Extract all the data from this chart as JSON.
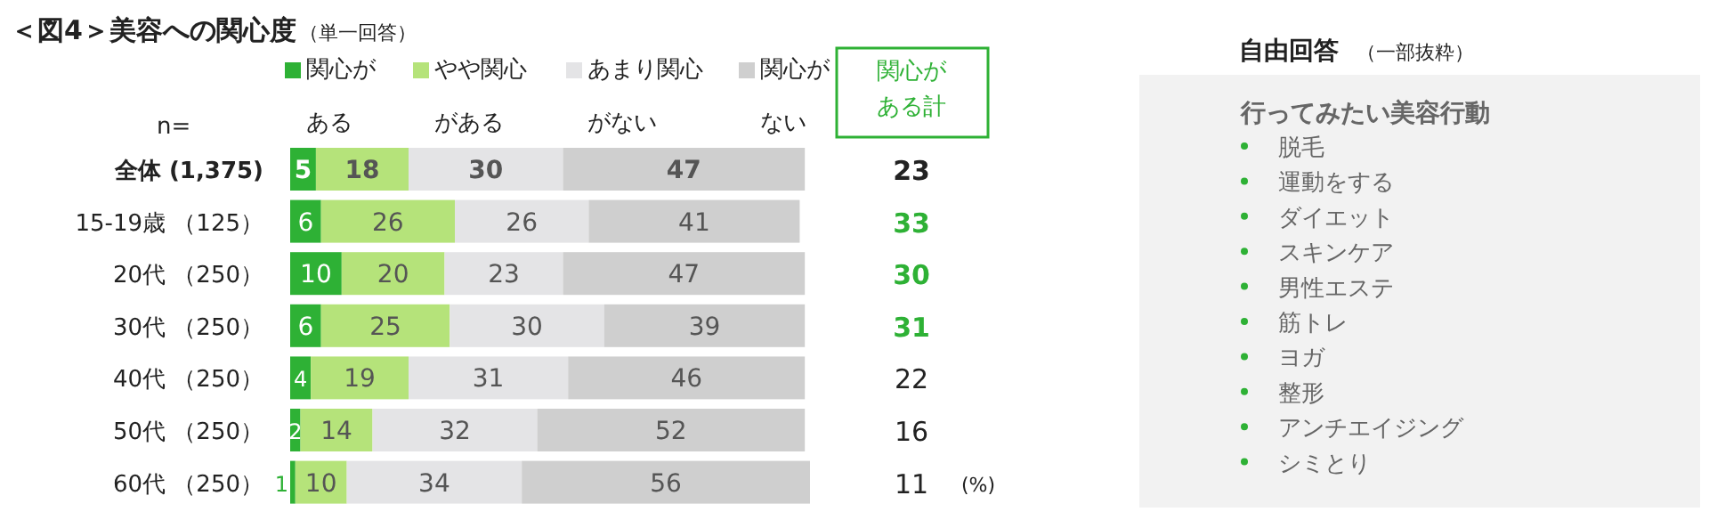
{
  "chart_data": [
    {
      "type": "bar",
      "orientation": "horizontal",
      "stacked": true,
      "title": "＜図4＞美容への関心度",
      "subtitle": "（単一回答）",
      "categories": [
        "全体 (1,375)",
        "15-19歳 （125）",
        "20代 （250）",
        "30代 （250）",
        "40代 （250）",
        "50代 （250）",
        "60代 （250）"
      ],
      "series": [
        {
          "name": "関心がある",
          "color": "#2eb135",
          "values": [
            5,
            6,
            10,
            6,
            4,
            2,
            1
          ]
        },
        {
          "name": "やや関心がある",
          "color": "#b5e37a",
          "values": [
            18,
            26,
            20,
            25,
            19,
            14,
            10
          ]
        },
        {
          "name": "あまり関心がない",
          "color": "#e4e4e6",
          "values": [
            30,
            26,
            23,
            30,
            31,
            32,
            34
          ]
        },
        {
          "name": "関心がない",
          "color": "#cfcfcf",
          "values": [
            47,
            41,
            47,
            39,
            46,
            52,
            56
          ]
        }
      ],
      "data_labels": true,
      "legend": "top",
      "annotations": [
        "n=",
        "関心がある計",
        "(%)",
        "23",
        "33",
        "30",
        "31",
        "22",
        "16",
        "11"
      ]
    },
    {
      "type": "other",
      "title": "自由回答",
      "subtitle": "（一部抜粋）",
      "annotations": [
        "行ってみたい美容行動",
        "脱毛",
        "運動をする",
        "ダイエット",
        "スキンケア",
        "男性エステ",
        "筋トレ",
        "ヨガ",
        "整形",
        "アンチエイジング",
        "シミとり"
      ]
    }
  ]
}
